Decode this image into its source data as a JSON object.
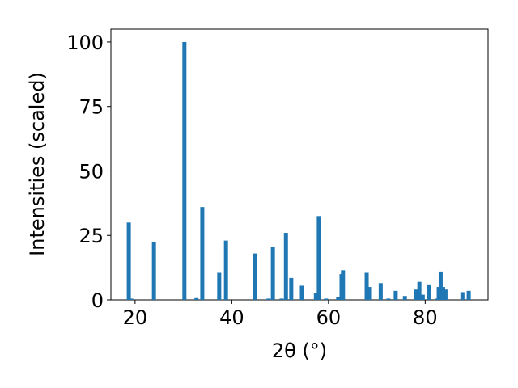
{
  "chart_data": {
    "type": "bar",
    "xlabel": "2θ (°)",
    "ylabel": "Intensities (scaled)",
    "x": [
      18.7,
      19.2,
      23.9,
      30.2,
      32.7,
      33.9,
      37.4,
      38.8,
      44.8,
      47.6,
      48.5,
      50.3,
      51.2,
      52.3,
      54.5,
      57.4,
      58.0,
      59.5,
      62.0,
      62.7,
      63.0,
      67.9,
      68.4,
      70.8,
      72.4,
      73.9,
      75.8,
      78.1,
      78.8,
      79.5,
      80.8,
      82.4,
      82.8,
      83.2,
      83.7,
      84.2,
      87.7,
      89.0
    ],
    "values": [
      30,
      0.5,
      22.5,
      100,
      0.7,
      36,
      10.5,
      23,
      18,
      0.5,
      20.5,
      0.5,
      26,
      8.5,
      5.5,
      2.5,
      32.5,
      0.5,
      1,
      10,
      11.5,
      10.5,
      5,
      6.5,
      0.5,
      3.5,
      1.5,
      4,
      7,
      2,
      6,
      0.5,
      5,
      11,
      5,
      4,
      3,
      3.5
    ],
    "color": "#1f77b4",
    "xlim": [
      15,
      93
    ],
    "xticks": [
      20,
      40,
      60,
      80
    ],
    "ylim": [
      0,
      105
    ],
    "yticks": [
      0,
      25,
      50,
      75,
      100
    ]
  }
}
